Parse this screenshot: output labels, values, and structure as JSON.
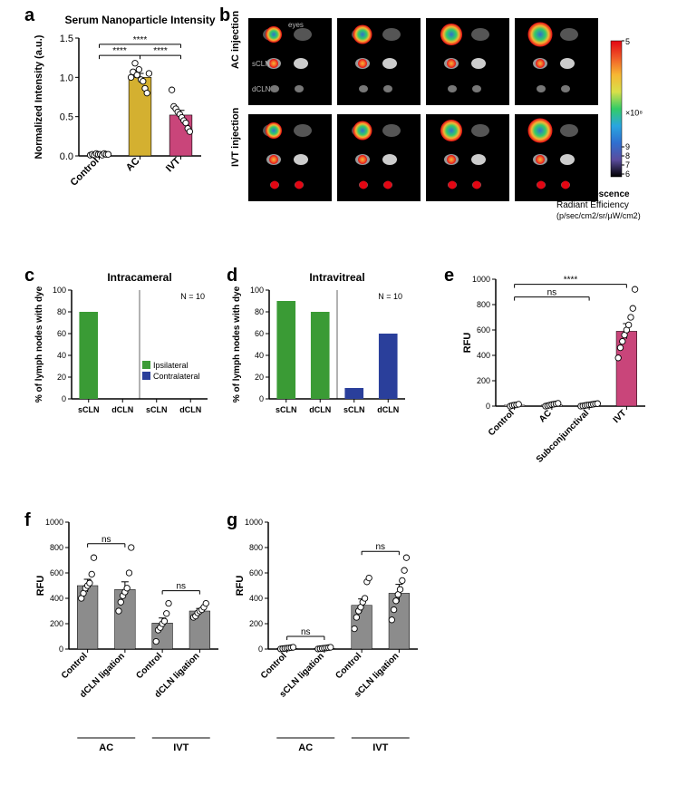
{
  "panel_a": {
    "label": "a",
    "title": "Serum Nanoparticle Intensity",
    "title_fontsize": 12,
    "ylabel": "Normalized Intensity (a.u.)",
    "label_fontsize": 11,
    "categories": [
      "Control",
      "AC",
      "IVT"
    ],
    "bar_means": [
      0.02,
      1.0,
      0.52
    ],
    "bar_err": [
      0.01,
      0.05,
      0.06
    ],
    "bar_colors": [
      "#f2e9e9",
      "#d4b030",
      "#c9457a"
    ],
    "dots": {
      "Control": [
        0.01,
        0.02,
        0.01,
        0.03,
        0.02,
        0.02,
        0.01,
        0.03,
        0.02,
        0.02
      ],
      "AC": [
        1.0,
        1.07,
        1.18,
        1.03,
        1.1,
        0.97,
        0.95,
        0.86,
        0.8,
        1.05
      ],
      "IVT": [
        0.84,
        0.63,
        0.6,
        0.56,
        0.53,
        0.49,
        0.45,
        0.42,
        0.35,
        0.31
      ]
    },
    "ylim": [
      0,
      1.5
    ],
    "yticks": [
      0,
      0.5,
      1.0,
      1.5
    ],
    "sig_bars": [
      {
        "from": 0,
        "to": 1,
        "y": 1.28,
        "label": "****"
      },
      {
        "from": 1,
        "to": 2,
        "y": 1.28,
        "label": "****"
      },
      {
        "from": 0,
        "to": 2,
        "y": 1.42,
        "label": "****"
      }
    ],
    "axis_color": "#000",
    "dot_stroke": "#000",
    "dot_fill": "#ffffff"
  },
  "panel_b": {
    "label": "b",
    "row1_label": "AC injection",
    "row2_label": "IVT injection",
    "organ_labels": [
      "eyes",
      "sCLN",
      "dCLN"
    ],
    "colorbar": {
      "title_bold": "Epi-fluorescence",
      "title2": "Radiant Efficiency",
      "unit": "(p/sec/cm2/sr/µW/cm2)",
      "top_tick": "5",
      "exp_label": "×10⁸",
      "ticks": [
        "9",
        "8",
        "7",
        "6"
      ],
      "gradient": [
        "#000000",
        "#5a4c9e",
        "#2f6fd0",
        "#2aa6e0",
        "#33cc66",
        "#d9e04a",
        "#f7b733",
        "#f05a28",
        "#e30613"
      ]
    }
  },
  "panel_c": {
    "label": "c",
    "title": "Intracameral",
    "ylabel": "% of lymph nodes with dye",
    "xcats": [
      "sCLN",
      "dCLN",
      "sCLN",
      "dCLN"
    ],
    "side_labels": [
      "Ipsilateral",
      "Contralateral"
    ],
    "values": [
      80,
      0,
      0,
      0
    ],
    "colors": [
      "#3a9b35",
      "#3a9b35",
      "#2a3f9b",
      "#2a3f9b"
    ],
    "ylim": [
      0,
      100
    ],
    "yticks": [
      0,
      20,
      40,
      60,
      80,
      100
    ],
    "n_label": "N = 10",
    "legend": [
      {
        "label": "Ipsilateral",
        "color": "#3a9b35"
      },
      {
        "label": "Contralateral",
        "color": "#2a3f9b"
      }
    ]
  },
  "panel_d": {
    "label": "d",
    "title": "Intravitreal",
    "ylabel": "% of lymph nodes with dye",
    "xcats": [
      "sCLN",
      "dCLN",
      "sCLN",
      "dCLN"
    ],
    "values": [
      90,
      80,
      10,
      60
    ],
    "colors": [
      "#3a9b35",
      "#3a9b35",
      "#2a3f9b",
      "#2a3f9b"
    ],
    "ylim": [
      0,
      100
    ],
    "yticks": [
      0,
      20,
      40,
      60,
      80,
      100
    ],
    "n_label": "N = 10"
  },
  "panel_e": {
    "label": "e",
    "ylabel": "RFU",
    "xcats": [
      "Control",
      "AC",
      "Subconjunctival",
      "IVT"
    ],
    "bar_means": [
      8,
      10,
      12,
      590
    ],
    "bar_err": [
      3,
      3,
      3,
      60
    ],
    "bar_colors": [
      "#f2e9e9",
      "#f2e9e9",
      "#f2e9e9",
      "#c9457a"
    ],
    "dots": {
      "Control": [
        0,
        5,
        8,
        10,
        15
      ],
      "AC": [
        0,
        3,
        8,
        12,
        15,
        18,
        22
      ],
      "Subconjunctival": [
        0,
        2,
        5,
        8,
        10,
        12,
        15,
        18,
        20
      ],
      "IVT": [
        380,
        460,
        510,
        560,
        600,
        640,
        700,
        770,
        920
      ]
    },
    "ylim": [
      0,
      1000
    ],
    "yticks": [
      0,
      200,
      400,
      600,
      800,
      1000
    ],
    "sig_bars": [
      {
        "from": 0,
        "to": 2,
        "y": 860,
        "label": "ns"
      },
      {
        "from": 0,
        "to": 3,
        "y": 960,
        "label": "****"
      }
    ]
  },
  "panel_f": {
    "label": "f",
    "ylabel": "RFU",
    "xcats": [
      "Control",
      "dCLN ligation",
      "Control",
      "dCLN ligation"
    ],
    "group_labels": [
      "AC",
      "IVT"
    ],
    "bar_means": [
      500,
      470,
      205,
      300
    ],
    "bar_err": [
      50,
      60,
      40,
      20
    ],
    "bar_color": "#8c8c8c",
    "dots": {
      "0": [
        400,
        440,
        480,
        500,
        520,
        590,
        720
      ],
      "1": [
        300,
        370,
        420,
        450,
        480,
        600,
        800
      ],
      "2": [
        60,
        150,
        170,
        200,
        220,
        280,
        360
      ],
      "3": [
        250,
        260,
        285,
        300,
        310,
        330,
        360
      ]
    },
    "ylim": [
      0,
      1000
    ],
    "yticks": [
      0,
      200,
      400,
      600,
      800,
      1000
    ],
    "sig_bars": [
      {
        "from": 0,
        "to": 1,
        "y": 830,
        "label": "ns"
      },
      {
        "from": 2,
        "to": 3,
        "y": 460,
        "label": "ns"
      }
    ]
  },
  "panel_g": {
    "label": "g",
    "ylabel": "RFU",
    "xcats": [
      "Control",
      "sCLN ligation",
      "Control",
      "sCLN ligation"
    ],
    "group_labels": [
      "AC",
      "IVT"
    ],
    "bar_means": [
      5,
      5,
      345,
      440
    ],
    "bar_err": [
      2,
      2,
      50,
      70
    ],
    "bar_color": "#8c8c8c",
    "dots": {
      "0": [
        1,
        3,
        5,
        7,
        9,
        11,
        14
      ],
      "1": [
        1,
        3,
        5,
        7,
        9,
        11,
        14
      ],
      "2": [
        160,
        250,
        300,
        330,
        370,
        400,
        530,
        560
      ],
      "3": [
        230,
        310,
        380,
        430,
        470,
        540,
        620,
        720
      ]
    },
    "ylim": [
      0,
      1000
    ],
    "yticks": [
      0,
      200,
      400,
      600,
      800,
      1000
    ],
    "sig_bars": [
      {
        "from": 0,
        "to": 1,
        "y": 100,
        "label": "ns"
      },
      {
        "from": 2,
        "to": 3,
        "y": 770,
        "label": "ns"
      }
    ]
  }
}
